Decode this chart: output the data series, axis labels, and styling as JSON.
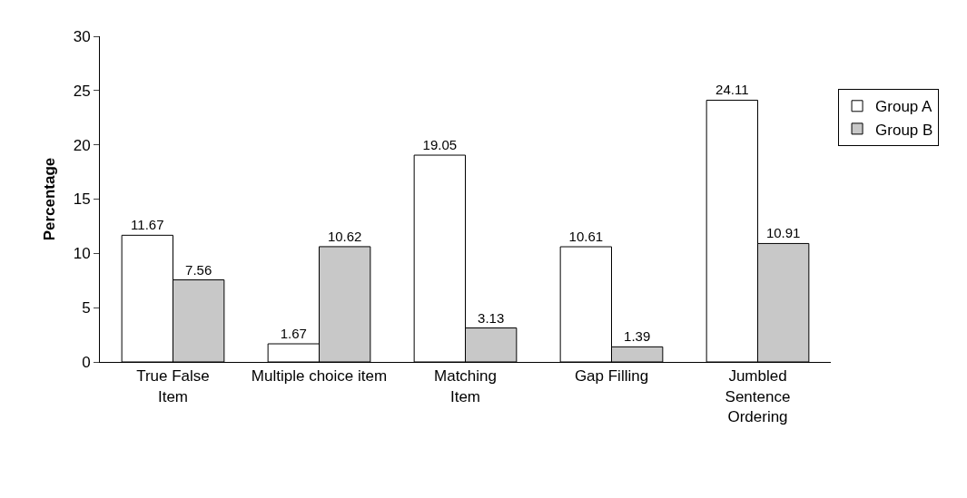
{
  "chart_data": {
    "type": "bar",
    "ylabel": "Percentage",
    "categories": [
      "True False\nItem",
      "Multiple choice item",
      "Matching\nItem",
      "Gap Filling",
      "Jumbled\nSentence\nOrdering"
    ],
    "series": [
      {
        "name": "Group A",
        "color": "#ffffff",
        "values": [
          11.67,
          1.67,
          19.05,
          10.61,
          24.11
        ]
      },
      {
        "name": "Group B",
        "color": "#c8c8c8",
        "values": [
          7.56,
          10.62,
          3.13,
          1.39,
          10.91
        ]
      }
    ],
    "ylim": [
      0,
      30
    ],
    "yticks": [
      0,
      5,
      10,
      15,
      20,
      25,
      30
    ],
    "legend": "right",
    "data_labels": true
  }
}
